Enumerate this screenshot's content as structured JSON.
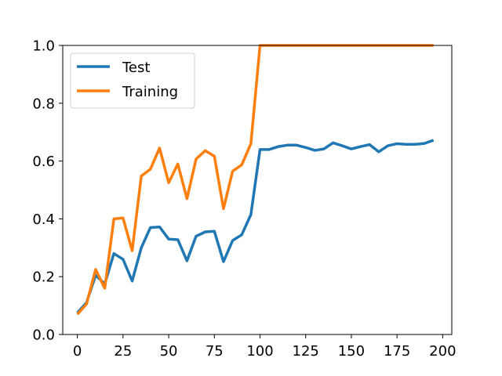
{
  "chart_data": {
    "type": "line",
    "title": "",
    "xlabel": "",
    "ylabel": "",
    "xlim": [
      -8,
      205
    ],
    "ylim": [
      0.0,
      1.0
    ],
    "x_ticks": [
      0,
      25,
      50,
      75,
      100,
      125,
      150,
      175,
      200
    ],
    "y_ticks": [
      0.0,
      0.2,
      0.4,
      0.6,
      0.8,
      1.0
    ],
    "y_tick_labels": [
      "0.0",
      "0.2",
      "0.4",
      "0.6",
      "0.8",
      "1.0"
    ],
    "grid": false,
    "legend_position": "top-left",
    "series": [
      {
        "name": "Test",
        "color": "#1f77b4",
        "x": [
          0,
          5,
          10,
          15,
          20,
          25,
          30,
          35,
          40,
          45,
          50,
          55,
          60,
          65,
          70,
          75,
          80,
          85,
          90,
          95,
          100,
          105,
          110,
          115,
          120,
          125,
          130,
          135,
          140,
          145,
          150,
          155,
          160,
          165,
          170,
          175,
          180,
          185,
          190,
          195
        ],
        "y": [
          0.075,
          0.11,
          0.205,
          0.175,
          0.28,
          0.26,
          0.185,
          0.3,
          0.37,
          0.372,
          0.33,
          0.328,
          0.255,
          0.34,
          0.355,
          0.357,
          0.252,
          0.325,
          0.345,
          0.415,
          0.64,
          0.64,
          0.65,
          0.655,
          0.655,
          0.647,
          0.637,
          0.642,
          0.663,
          0.653,
          0.642,
          0.65,
          0.657,
          0.632,
          0.653,
          0.66,
          0.658,
          0.658,
          0.661,
          0.672
        ]
      },
      {
        "name": "Training",
        "color": "#ff7f0e",
        "x": [
          0,
          5,
          10,
          15,
          20,
          25,
          30,
          35,
          40,
          45,
          50,
          55,
          60,
          65,
          70,
          75,
          80,
          85,
          90,
          95,
          100,
          105,
          110,
          115,
          120,
          125,
          130,
          135,
          140,
          145,
          150,
          155,
          160,
          165,
          170,
          175,
          180,
          185,
          190,
          195
        ],
        "y": [
          0.07,
          0.105,
          0.225,
          0.16,
          0.4,
          0.403,
          0.29,
          0.548,
          0.572,
          0.645,
          0.525,
          0.59,
          0.47,
          0.607,
          0.636,
          0.617,
          0.435,
          0.565,
          0.587,
          0.66,
          1.0,
          1.0,
          1.0,
          1.0,
          1.0,
          1.0,
          1.0,
          1.0,
          1.0,
          1.0,
          1.0,
          1.0,
          1.0,
          1.0,
          1.0,
          1.0,
          1.0,
          1.0,
          1.0,
          1.0
        ]
      }
    ]
  }
}
